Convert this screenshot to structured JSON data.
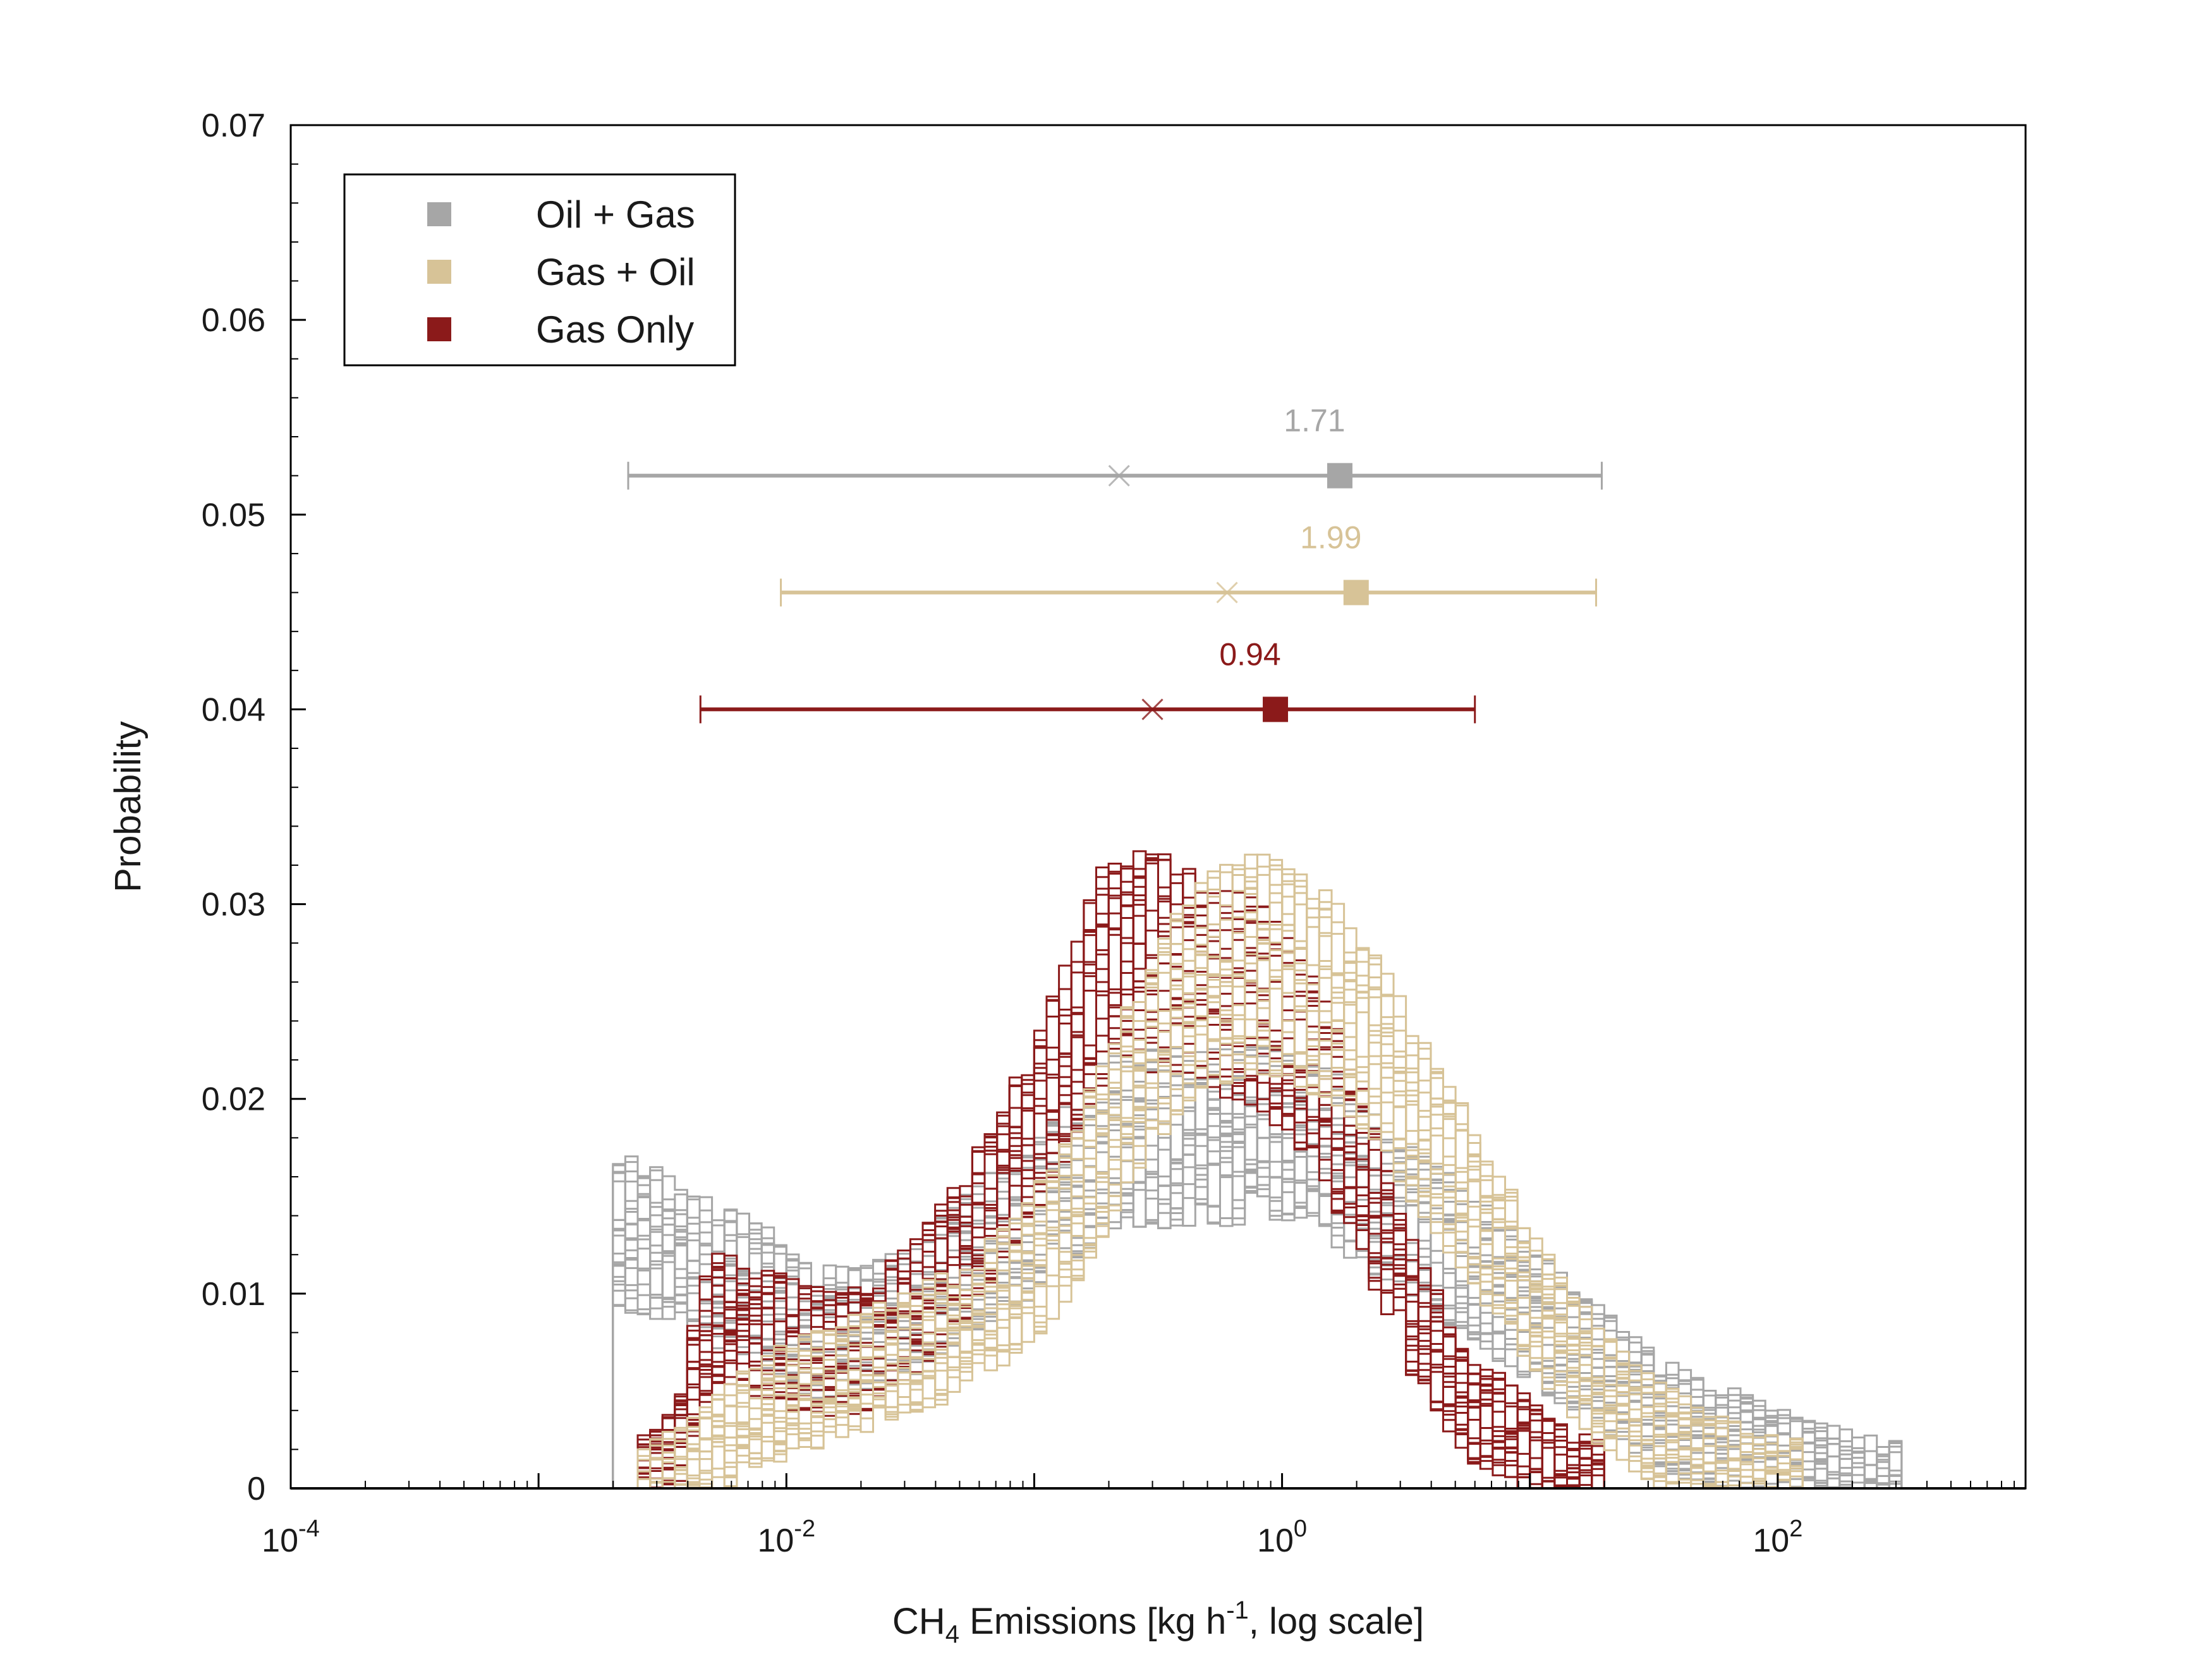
{
  "chart_data": {
    "type": "histogram",
    "xlabel": {
      "prefix": "CH",
      "sub": "4",
      "middle": " Emissions [kg h",
      "sup": "-1",
      "suffix": ", log scale]"
    },
    "ylabel": "Probability",
    "x_scale": "log",
    "xlim": [
      0.0001,
      1000
    ],
    "ylim": [
      0,
      0.07
    ],
    "x_major_ticks": [
      {
        "value": 0.0001,
        "base": "10",
        "exp": "-4"
      },
      {
        "value": 0.01,
        "base": "10",
        "exp": "-2"
      },
      {
        "value": 1,
        "base": "10",
        "exp": "0"
      },
      {
        "value": 100,
        "base": "10",
        "exp": "2"
      }
    ],
    "y_ticks": [
      {
        "value": 0,
        "label": "0"
      },
      {
        "value": 0.01,
        "label": "0.01"
      },
      {
        "value": 0.02,
        "label": "0.02"
      },
      {
        "value": 0.03,
        "label": "0.03"
      },
      {
        "value": 0.04,
        "label": "0.04"
      },
      {
        "value": 0.05,
        "label": "0.05"
      },
      {
        "value": 0.06,
        "label": "0.06"
      },
      {
        "value": 0.07,
        "label": "0.07"
      }
    ],
    "grid": false,
    "legend": {
      "position": "top-left"
    },
    "histogram_realizations": 20,
    "series": [
      {
        "name": "Oil + Gas",
        "color": "#a6a6a6",
        "x_log10": [
          -2.6,
          -2.45,
          -2.3,
          -2.1,
          -1.9,
          -1.7,
          -1.5,
          -1.3,
          -1.1,
          -0.9,
          -0.7,
          -0.5,
          -0.3,
          -0.1,
          0.1,
          0.3,
          0.5,
          0.7,
          0.9,
          1.1,
          1.3,
          1.5,
          1.7,
          1.9,
          2.1,
          2.3,
          2.5
        ],
        "density": [
          0.013,
          0.012,
          0.011,
          0.01,
          0.008,
          0.008,
          0.009,
          0.011,
          0.013,
          0.015,
          0.018,
          0.018,
          0.018,
          0.018,
          0.018,
          0.016,
          0.014,
          0.012,
          0.01,
          0.008,
          0.006,
          0.004,
          0.003,
          0.002,
          0.001,
          0.0005,
          0.0
        ],
        "interval": {
          "low": 0.0023,
          "high": 19.5,
          "median": 0.22,
          "mean": 1.71,
          "y": 0.052,
          "label": "1.71"
        }
      },
      {
        "name": "Gas + Oil",
        "color": "#d7c397",
        "x_log10": [
          -2.6,
          -2.45,
          -2.3,
          -2.1,
          -1.9,
          -1.7,
          -1.5,
          -1.3,
          -1.1,
          -0.9,
          -0.7,
          -0.5,
          -0.3,
          -0.1,
          0.1,
          0.3,
          0.5,
          0.7,
          0.9,
          1.1,
          1.3,
          1.5,
          1.7,
          1.9,
          2.1,
          2.3,
          2.5
        ],
        "density": [
          0.0,
          0.0005,
          0.002,
          0.004,
          0.005,
          0.006,
          0.007,
          0.008,
          0.01,
          0.013,
          0.018,
          0.023,
          0.026,
          0.027,
          0.026,
          0.024,
          0.02,
          0.016,
          0.012,
          0.008,
          0.005,
          0.003,
          0.0015,
          0.0005,
          0.0,
          0.0,
          0.0
        ],
        "interval": {
          "low": 0.0095,
          "high": 18.5,
          "median": 0.6,
          "mean": 1.99,
          "y": 0.046,
          "label": "1.99"
        }
      },
      {
        "name": "Gas Only",
        "color": "#8b1a1a",
        "x_log10": [
          -2.6,
          -2.45,
          -2.3,
          -2.1,
          -1.9,
          -1.7,
          -1.5,
          -1.3,
          -1.1,
          -0.9,
          -0.7,
          -0.5,
          -0.3,
          -0.1,
          0.1,
          0.3,
          0.5,
          0.7,
          0.9,
          1.1,
          1.3,
          1.5,
          1.7,
          1.9,
          2.1,
          2.3,
          2.5
        ],
        "density": [
          0.0,
          0.002,
          0.009,
          0.008,
          0.007,
          0.007,
          0.009,
          0.012,
          0.016,
          0.021,
          0.027,
          0.027,
          0.026,
          0.025,
          0.022,
          0.017,
          0.01,
          0.005,
          0.003,
          0.001,
          0.0,
          0.0,
          0.0,
          0.0,
          0.0,
          0.0,
          0.0
        ],
        "interval": {
          "low": 0.0045,
          "high": 6.0,
          "median": 0.3,
          "mean": 0.94,
          "y": 0.04,
          "label": "0.94"
        }
      }
    ]
  }
}
